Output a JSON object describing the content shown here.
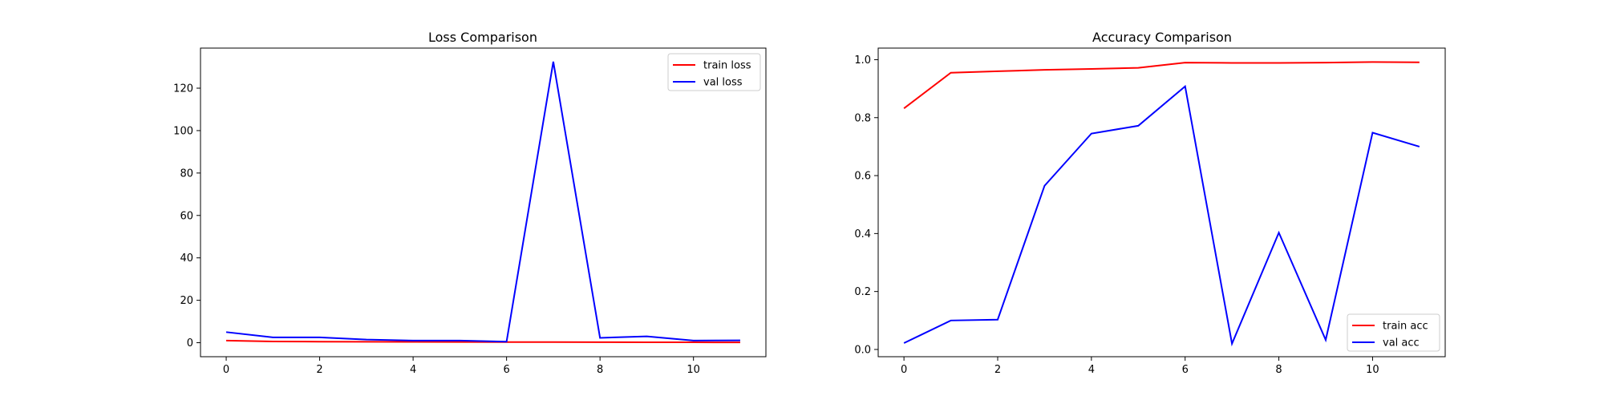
{
  "chart_data": [
    {
      "type": "line",
      "title": "Loss Comparison",
      "xlabel": "",
      "ylabel": "",
      "xlim": [
        -0.55,
        11.55
      ],
      "ylim": [
        -6.6,
        138.9
      ],
      "xticks": [
        0,
        2,
        4,
        6,
        8,
        10
      ],
      "yticks": [
        0,
        20,
        40,
        60,
        80,
        100,
        120
      ],
      "grid": false,
      "legend_position": "top-right",
      "x": [
        0,
        1,
        2,
        3,
        4,
        5,
        6,
        7,
        8,
        9,
        10,
        11
      ],
      "series": [
        {
          "name": "train loss",
          "color": "#ff0000",
          "values": [
            1.0,
            0.6,
            0.5,
            0.45,
            0.4,
            0.35,
            0.3,
            0.28,
            0.25,
            0.2,
            0.18,
            0.15
          ]
        },
        {
          "name": "val loss",
          "color": "#0000ff",
          "values": [
            5.0,
            2.5,
            2.5,
            1.5,
            1.0,
            1.0,
            0.5,
            132.5,
            2.3,
            3.0,
            1.0,
            1.1
          ]
        }
      ]
    },
    {
      "type": "line",
      "title": "Accuracy Comparison",
      "xlabel": "",
      "ylabel": "",
      "xlim": [
        -0.55,
        11.55
      ],
      "ylim": [
        -0.025,
        1.04
      ],
      "xticks": [
        0,
        2,
        4,
        6,
        8,
        10
      ],
      "yticks": [
        0.0,
        0.2,
        0.4,
        0.6,
        0.8,
        1.0
      ],
      "grid": false,
      "legend_position": "bottom-right",
      "x": [
        0,
        1,
        2,
        3,
        4,
        5,
        6,
        7,
        8,
        9,
        10,
        11
      ],
      "series": [
        {
          "name": "train acc",
          "color": "#ff0000",
          "values": [
            0.832,
            0.955,
            0.96,
            0.965,
            0.968,
            0.972,
            0.99,
            0.989,
            0.989,
            0.99,
            0.992,
            0.991
          ]
        },
        {
          "name": "val acc",
          "color": "#0000ff",
          "values": [
            0.022,
            0.1,
            0.103,
            0.565,
            0.745,
            0.772,
            0.908,
            0.02,
            0.403,
            0.033,
            0.748,
            0.7
          ]
        }
      ]
    }
  ]
}
